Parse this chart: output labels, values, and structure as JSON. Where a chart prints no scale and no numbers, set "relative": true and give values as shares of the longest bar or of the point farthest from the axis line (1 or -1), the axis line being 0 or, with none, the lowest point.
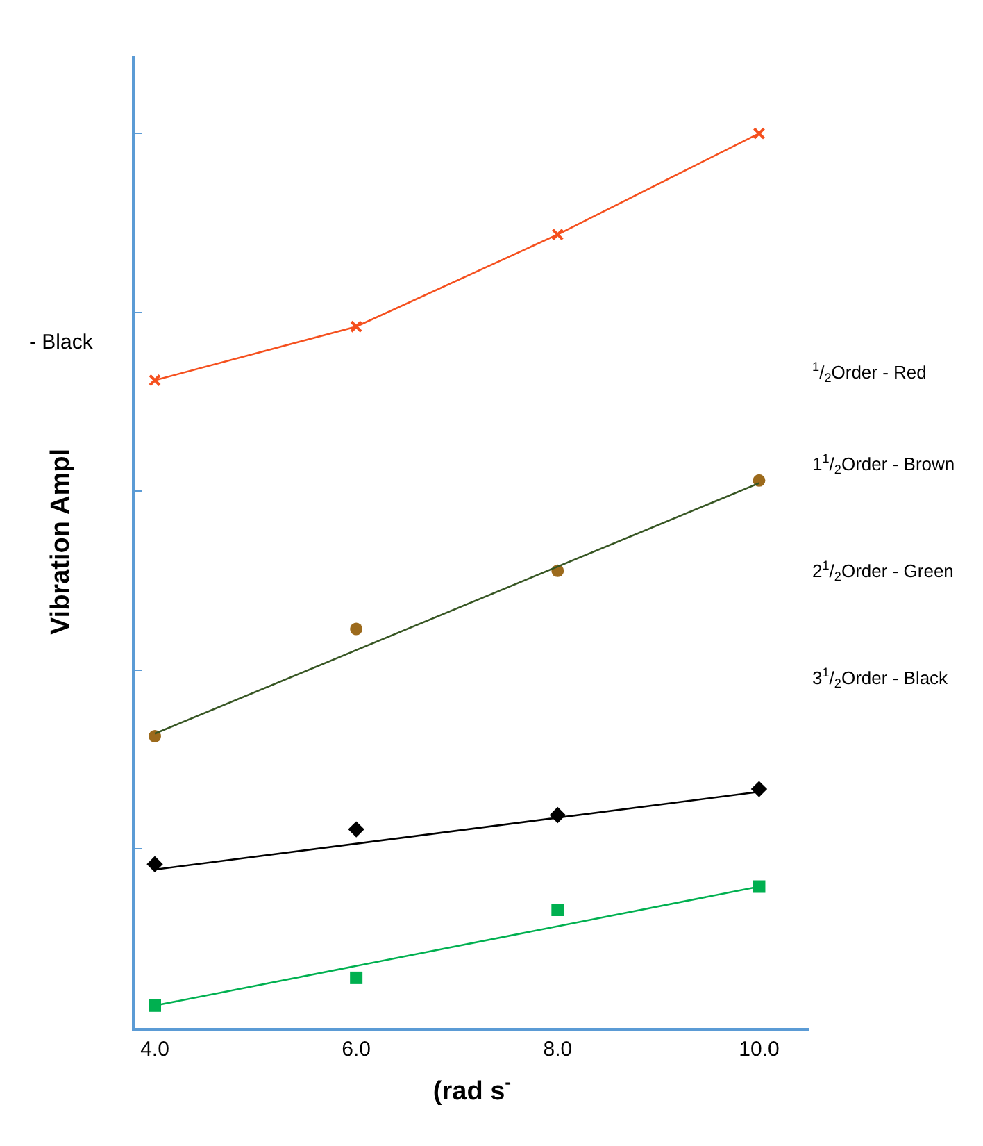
{
  "chart_data": {
    "type": "scatter",
    "relative": true,
    "xlabel": "(rad s$^{-}$",
    "ylabel": "Vibration Ampl",
    "xlim": [
      3.8,
      10.5
    ],
    "xticks": [
      {
        "value": 4,
        "label": "4.0"
      },
      {
        "value": 6,
        "label": "6.0"
      },
      {
        "value": 8,
        "label": "8.0"
      },
      {
        "value": 10,
        "label": "10.0"
      }
    ],
    "grid": false,
    "legend": false,
    "series": [
      {
        "type": "line",
        "marker": "cross",
        "color": "#f5501e",
        "x": [
          4,
          6,
          8,
          10
        ],
        "values": [
          0.724,
          0.784,
          0.887,
          1
        ]
      },
      {
        "marker": "circle",
        "color": "#9c6a1c",
        "x": [
          4,
          6,
          8,
          10
        ],
        "values": [
          0.326,
          0.446,
          0.511,
          0.612
        ]
      },
      {
        "type": "line",
        "marker": "none",
        "color": "#375623",
        "x": [
          4,
          10
        ],
        "values": [
          0.329,
          0.609
        ]
      },
      {
        "marker": "diamond",
        "color": "#000000",
        "x": [
          4,
          6,
          8,
          10
        ],
        "values": [
          0.183,
          0.222,
          0.238,
          0.267
        ]
      },
      {
        "type": "line",
        "marker": "none",
        "color": "#000000",
        "x": [
          4,
          10
        ],
        "values": [
          0.177,
          0.264
        ]
      },
      {
        "marker": "square",
        "color": "#00b050",
        "x": [
          4,
          6,
          8,
          10
        ],
        "values": [
          0.025,
          0.056,
          0.132,
          0.158
        ]
      },
      {
        "type": "line",
        "marker": "none",
        "color": "#00b050",
        "x": [
          4,
          10
        ],
        "values": [
          0.025,
          0.158
        ]
      }
    ],
    "annotations": [
      "- Black",
      "$^{1}$/$_{2}$Order - Red",
      "1$^{1}$/$_{2}$Order - Brown",
      "2$^{1}$/$_{2}$Order - Green",
      "3$^{1}$/$_{2}$Order - Black"
    ]
  }
}
